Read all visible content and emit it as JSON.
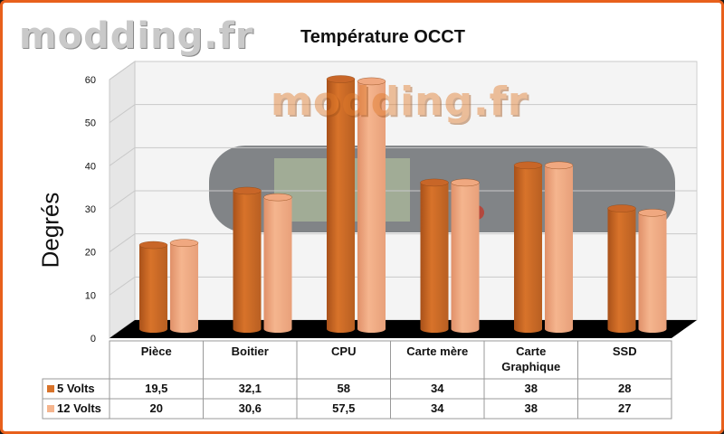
{
  "watermark": "modding.fr",
  "chart_data": {
    "type": "bar",
    "title": "Température OCCT",
    "ylabel": "Degrés",
    "xlabel": "",
    "ylim": [
      0,
      60
    ],
    "yticks": [
      0,
      10,
      20,
      30,
      40,
      50,
      60
    ],
    "categories": [
      "Pièce",
      "Boitier",
      "CPU",
      "Carte mère",
      "Carte Graphique",
      "SSD"
    ],
    "category_lines": [
      [
        "Pièce"
      ],
      [
        "Boitier"
      ],
      [
        "CPU"
      ],
      [
        "Carte mère"
      ],
      [
        "Carte",
        "Graphique"
      ],
      [
        "SSD"
      ]
    ],
    "series": [
      {
        "name": "5 Volts",
        "color": "#d8732a",
        "values": [
          19.5,
          32.1,
          58,
          34,
          38,
          28
        ],
        "labels": [
          "19,5",
          "32,1",
          "58",
          "34",
          "38",
          "28"
        ]
      },
      {
        "name": "12 Volts",
        "color": "#f5b58e",
        "values": [
          20,
          30.6,
          57.5,
          34,
          38,
          27
        ],
        "labels": [
          "20",
          "30,6",
          "57,5",
          "34",
          "38",
          "27"
        ]
      }
    ],
    "grid": true,
    "legend": "table-below",
    "data_table": true
  }
}
